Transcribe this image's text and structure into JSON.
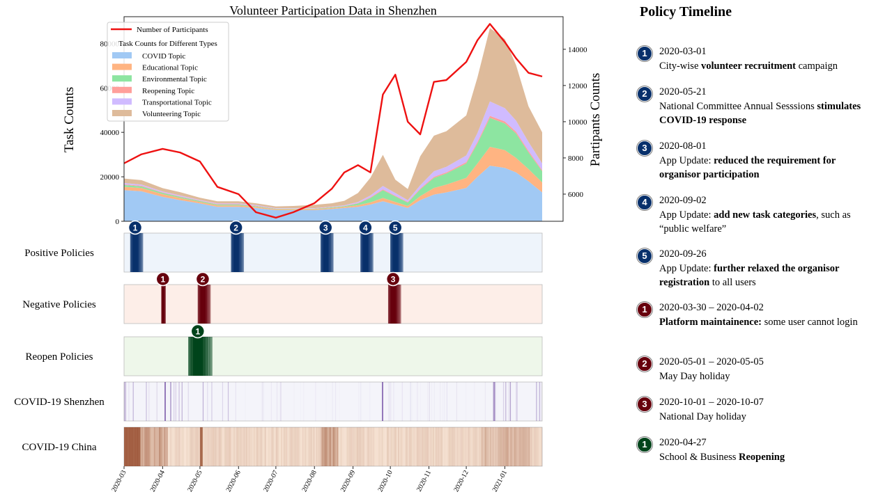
{
  "colors": {
    "participants_line": "#ee1111",
    "positive": "#08306b",
    "negative": "#67000d",
    "reopen": "#00441b",
    "covid_sz": "#54278f",
    "covid_cn": "#7f2704"
  },
  "chart_data": [
    {
      "type": "area",
      "title": "Volunteer Participation Data in Shenzhen",
      "xlabel": "",
      "ylabel": "Task Counts",
      "ylabel_right": "Partipants Counts",
      "x_range": [
        "2020-03-01",
        "2021-01-31"
      ],
      "ylim": [
        0,
        92000
      ],
      "ylim_right": [
        4500,
        15800
      ],
      "yticks": [
        "0",
        "20000",
        "40000",
        "60000",
        "80000"
      ],
      "yticks_right": [
        "6000",
        "8000",
        "10000",
        "12000",
        "14000"
      ],
      "legend_position": "upper left",
      "legend_line_label": "Number of Participants",
      "legend_title": "Task Counts for Different Types",
      "x": [
        "2020-03-01",
        "2020-03-15",
        "2020-04-01",
        "2020-04-15",
        "2020-05-01",
        "2020-05-15",
        "2020-06-01",
        "2020-06-15",
        "2020-07-01",
        "2020-07-15",
        "2020-08-01",
        "2020-08-15",
        "2020-08-25",
        "2020-09-05",
        "2020-09-15",
        "2020-09-25",
        "2020-10-05",
        "2020-10-15",
        "2020-10-25",
        "2020-11-05",
        "2020-11-15",
        "2020-12-01",
        "2020-12-10",
        "2020-12-20",
        "2021-01-01",
        "2021-01-10",
        "2021-01-20",
        "2021-01-31"
      ],
      "series": [
        {
          "name": "COVID Topic",
          "color": "#a1c9f4",
          "values": [
            14000,
            13500,
            11000,
            9500,
            8000,
            6500,
            6500,
            6000,
            5000,
            5000,
            5000,
            5500,
            6000,
            6500,
            7500,
            9000,
            7500,
            6000,
            9500,
            12000,
            13000,
            15000,
            20000,
            25000,
            24000,
            22000,
            18000,
            13000
          ]
        },
        {
          "name": "Educational Topic",
          "color": "#ffb482",
          "values": [
            1500,
            1500,
            1200,
            1000,
            700,
            600,
            600,
            500,
            400,
            400,
            400,
            500,
            500,
            700,
            1000,
            1500,
            1200,
            900,
            1800,
            3000,
            3500,
            4500,
            6000,
            8500,
            8000,
            6500,
            5500,
            4500
          ]
        },
        {
          "name": "Environmental Topic",
          "color": "#8de5a1",
          "values": [
            800,
            700,
            600,
            500,
            400,
            400,
            400,
            300,
            200,
            200,
            200,
            300,
            300,
            800,
            2000,
            3500,
            2500,
            1500,
            3000,
            4500,
            5000,
            6500,
            9000,
            13000,
            12000,
            11000,
            7500,
            5000
          ]
        },
        {
          "name": "Reopening Topic",
          "color": "#ff9f9b",
          "values": [
            300,
            300,
            200,
            200,
            200,
            200,
            200,
            200,
            100,
            100,
            100,
            100,
            100,
            200,
            300,
            400,
            300,
            300,
            400,
            500,
            500,
            600,
            700,
            900,
            900,
            800,
            700,
            500
          ]
        },
        {
          "name": "Transportational Topic",
          "color": "#d0bbff",
          "values": [
            600,
            500,
            400,
            400,
            300,
            300,
            300,
            300,
            200,
            200,
            200,
            200,
            300,
            500,
            800,
            1500,
            1200,
            800,
            1500,
            2500,
            2500,
            3000,
            4000,
            6500,
            6000,
            5000,
            4000,
            3000
          ]
        },
        {
          "name": "Volunteering Topic",
          "color": "#debb9b",
          "values": [
            2000,
            2000,
            1500,
            1500,
            1000,
            1000,
            1000,
            800,
            800,
            1000,
            1500,
            1500,
            2000,
            4000,
            8000,
            14000,
            6000,
            5000,
            13000,
            16000,
            16000,
            18000,
            25000,
            33000,
            31000,
            25000,
            16000,
            14000
          ]
        }
      ],
      "line": {
        "name": "Number of Participants",
        "values": [
          7700,
          8200,
          8500,
          8300,
          7800,
          6400,
          6000,
          5000,
          4700,
          5000,
          5500,
          6300,
          7200,
          7600,
          7200,
          11500,
          12600,
          10000,
          9300,
          12200,
          12300,
          13300,
          14500,
          15400,
          14400,
          13500,
          12700,
          12500
        ]
      }
    },
    {
      "type": "heatmap",
      "x_range": [
        "2020-03-01",
        "2021-01-31"
      ],
      "xticks": [
        "2020-03",
        "2020-04",
        "2020-05",
        "2020-06",
        "2020-07",
        "2020-08",
        "2020-09",
        "2020-10",
        "2020-11",
        "2020-12",
        "2021-01"
      ],
      "rows": [
        {
          "label": "Positive Policies",
          "markers": [
            {
              "id": "1",
              "date": "2020-03-01"
            },
            {
              "id": "2",
              "date": "2020-05-21"
            },
            {
              "id": "3",
              "date": "2020-08-01"
            },
            {
              "id": "4",
              "date": "2020-09-02"
            },
            {
              "id": "5",
              "date": "2020-09-26"
            }
          ]
        },
        {
          "label": "Negative Policies",
          "markers": [
            {
              "id": "1",
              "date": "2020-03-30"
            },
            {
              "id": "2",
              "date": "2020-05-01"
            },
            {
              "id": "3",
              "date": "2020-10-01"
            }
          ]
        },
        {
          "label": "Reopen Policies",
          "markers": [
            {
              "id": "1",
              "date": "2020-04-27"
            }
          ]
        },
        {
          "label": "COVID-19 Shenzhen",
          "markers": []
        },
        {
          "label": "COVID-19 China",
          "markers": []
        }
      ]
    }
  ],
  "timeline": {
    "title": "Policy Timeline",
    "items": [
      {
        "kind": "positive",
        "num": "1",
        "date": "2020-03-01",
        "desc": [
          {
            "t": "City-wise "
          },
          {
            "t": "volunteer recruitment",
            "b": true
          },
          {
            "t": " campaign"
          }
        ]
      },
      {
        "kind": "positive",
        "num": "2",
        "date": "2020-05-21",
        "desc": [
          {
            "t": "National Committee Annual Sesssions "
          },
          {
            "t": "stimulates COVID-19 response",
            "b": true
          }
        ]
      },
      {
        "kind": "positive",
        "num": "3",
        "date": "2020-08-01",
        "desc": [
          {
            "t": "App Update: "
          },
          {
            "t": "reduced the requirement for organisor participation",
            "b": true
          }
        ]
      },
      {
        "kind": "positive",
        "num": "4",
        "date": "2020-09-02",
        "desc": [
          {
            "t": "App Update: "
          },
          {
            "t": "add new task categories",
            "b": true
          },
          {
            "t": ", such as “public welfare”"
          }
        ]
      },
      {
        "kind": "positive",
        "num": "5",
        "date": "2020-09-26",
        "desc": [
          {
            "t": "App Update: "
          },
          {
            "t": "further relaxed the organisor registration",
            "b": true
          },
          {
            "t": " to all users"
          }
        ]
      },
      {
        "kind": "negative",
        "num": "1",
        "date": "2020-03-30 – 2020-04-02",
        "desc": [
          {
            "t": "Platform maintainence:",
            "b": true
          },
          {
            "t": " some user cannot login"
          }
        ]
      },
      {
        "kind": "negative",
        "num": "2",
        "date": "2020-05-01 – 2020-05-05",
        "desc": [
          {
            "t": "May Day holiday"
          }
        ]
      },
      {
        "kind": "negative",
        "num": "3",
        "date": "2020-10-01 – 2020-10-07",
        "desc": [
          {
            "t": "National Day holiday"
          }
        ]
      },
      {
        "kind": "reopen",
        "num": "1",
        "date": "2020-04-27",
        "desc": [
          {
            "t": "School & Business "
          },
          {
            "t": "Reopening",
            "b": true
          }
        ]
      }
    ]
  }
}
